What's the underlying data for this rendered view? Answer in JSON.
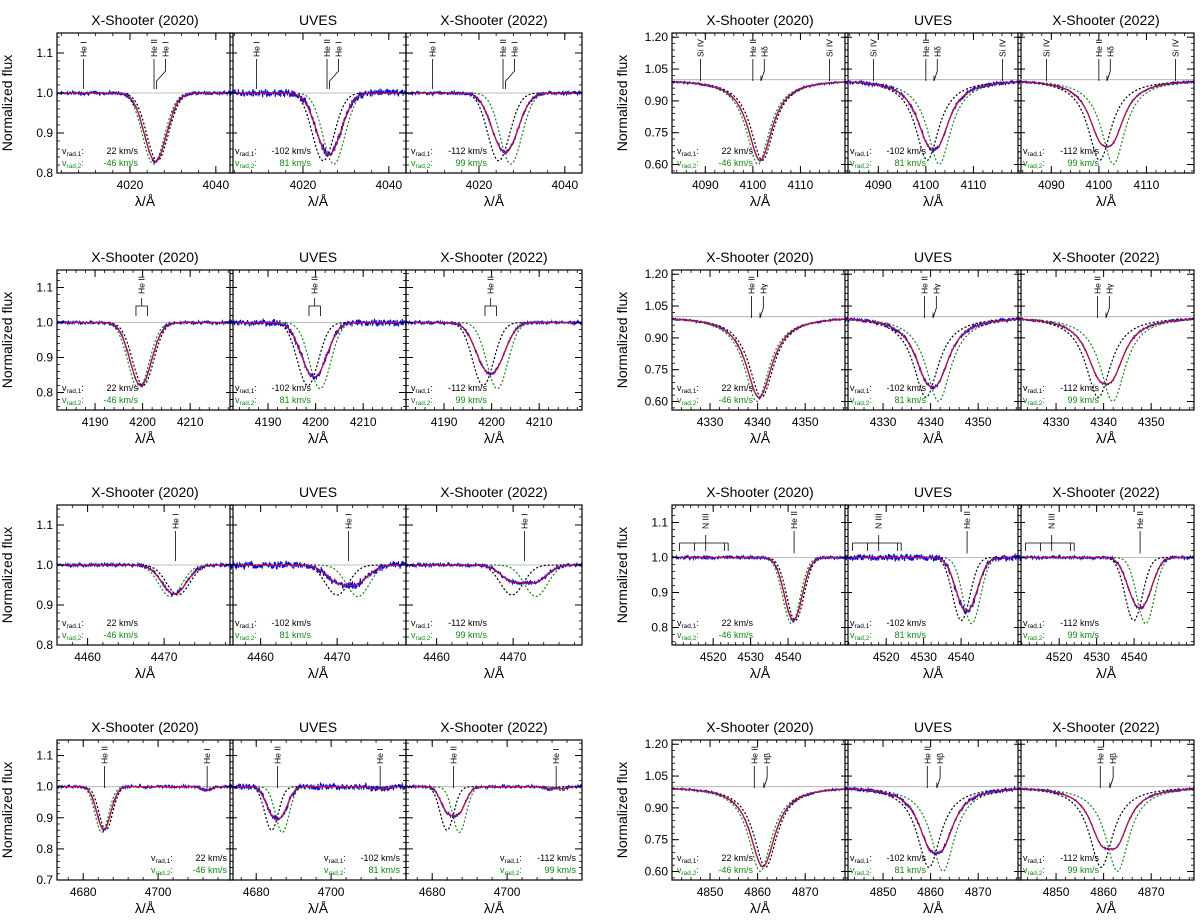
{
  "colors": {
    "observed": "#0000ee",
    "composite": "#cc0000",
    "model1": "#000000",
    "model2": "#118811",
    "continuum": "#aaaaaa",
    "composite_alt": "#8a2be2"
  },
  "epochs": [
    {
      "title": "X-Shooter (2020)",
      "v1": 22,
      "v2": -46
    },
    {
      "title": "UVES",
      "v1": -102,
      "v2": 81
    },
    {
      "title": "X-Shooter (2022)",
      "v1": -112,
      "v2": 99
    }
  ],
  "rv_text": {
    "label1_main": "v",
    "label1_sub": "rad,1",
    "label2_main": "v",
    "label2_sub": "rad,2",
    "sep": ":",
    "unit": "km/s"
  },
  "axis_labels": {
    "x": "λ/Å",
    "y": "Normalized flux"
  },
  "chart_data": [
    {
      "type": "line",
      "id": "heI4026",
      "xlim": [
        4003,
        4044
      ],
      "ylim": [
        0.8,
        1.15
      ],
      "xticks": [
        4020,
        4040
      ],
      "yticks": [
        0.8,
        0.9,
        1.0,
        1.1
      ],
      "lines": [
        {
          "center": 4026.2,
          "depth": 0.15,
          "width": 2.6,
          "profile": "gauss"
        },
        {
          "center": 4025.6,
          "depth": 0.02,
          "width": 2.0,
          "profile": "gauss"
        }
      ],
      "labels": [
        {
          "text": "He I",
          "x": 4009.2,
          "x_line": 4009.2
        },
        {
          "text": "He II",
          "x": 4025.6,
          "x_line": 4025.6
        },
        {
          "text": "He I",
          "x": 4028.3,
          "x_line": 4026.2
        }
      ],
      "rv_pos": "bl"
    },
    {
      "type": "line",
      "id": "hdelta",
      "xlim": [
        4083,
        4120
      ],
      "ylim": [
        0.56,
        1.22
      ],
      "xticks": [
        4090,
        4100,
        4110
      ],
      "yticks": [
        0.6,
        0.75,
        0.9,
        1.05,
        1.2
      ],
      "ytick_labels": [
        "0.60",
        "0.75",
        "0.90",
        "1.05",
        "1.20"
      ],
      "lines": [
        {
          "center": 4101.7,
          "depth": 0.38,
          "width": 3.0,
          "profile": "lorentz"
        }
      ],
      "labels": [
        {
          "text": "Si IV",
          "x": 4089.0,
          "x_line": 4089.0
        },
        {
          "text": "He II",
          "x": 4100.0,
          "x_line": 4100.0
        },
        {
          "text": "Hδ",
          "x": 4102.4,
          "x_line": 4101.7
        },
        {
          "text": "Si IV",
          "x": 4116.1,
          "x_line": 4116.1
        }
      ],
      "rv_pos": "bl"
    },
    {
      "type": "line",
      "id": "heII4200",
      "xlim": [
        4182,
        4219
      ],
      "ylim": [
        0.75,
        1.15
      ],
      "xticks": [
        4190,
        4200,
        4210
      ],
      "yticks": [
        0.8,
        0.9,
        1.0,
        1.1
      ],
      "lines": [
        {
          "center": 4199.8,
          "depth": 0.18,
          "width": 2.2,
          "profile": "gauss"
        }
      ],
      "labels": [
        {
          "text": "He II",
          "x": 4199.8,
          "x_line": 4199.8,
          "bracket": [
            4198.6,
            4201.0
          ]
        }
      ],
      "rv_pos": "bl"
    },
    {
      "type": "line",
      "id": "hgamma",
      "xlim": [
        4322,
        4359
      ],
      "ylim": [
        0.56,
        1.22
      ],
      "xticks": [
        4330,
        4340,
        4350
      ],
      "yticks": [
        0.6,
        0.75,
        0.9,
        1.05,
        1.2
      ],
      "ytick_labels": [
        "0.60",
        "0.75",
        "0.90",
        "1.05",
        "1.20"
      ],
      "lines": [
        {
          "center": 4340.5,
          "depth": 0.38,
          "width": 3.2,
          "profile": "lorentz"
        }
      ],
      "labels": [
        {
          "text": "He II",
          "x": 4338.7,
          "x_line": 4338.7
        },
        {
          "text": "Hγ",
          "x": 4341.2,
          "x_line": 4340.5
        }
      ],
      "rv_pos": "bl"
    },
    {
      "type": "line",
      "id": "heI4471",
      "xlim": [
        4456,
        4479
      ],
      "ylim": [
        0.8,
        1.15
      ],
      "xticks": [
        4460,
        4470
      ],
      "yticks": [
        0.8,
        0.9,
        1.0,
        1.1
      ],
      "lines": [
        {
          "center": 4471.5,
          "depth": 0.075,
          "width": 1.5,
          "profile": "gauss"
        }
      ],
      "labels": [
        {
          "text": "He I",
          "x": 4471.5,
          "x_line": 4471.5
        }
      ],
      "rv_pos": "bl"
    },
    {
      "type": "line",
      "id": "heII4542",
      "xlim": [
        4509,
        4556
      ],
      "ylim": [
        0.75,
        1.15
      ],
      "xticks": [
        4520,
        4530,
        4540
      ],
      "yticks": [
        0.8,
        0.9,
        1.0,
        1.1
      ],
      "lines": [
        {
          "center": 4541.6,
          "depth": 0.18,
          "width": 2.3,
          "profile": "gauss"
        }
      ],
      "labels": [
        {
          "text": "N III",
          "x": 4518.0,
          "x_line": 4518.0,
          "comb": [
            4511,
            4515,
            4518,
            4523,
            4524
          ]
        },
        {
          "text": "He II",
          "x": 4541.6,
          "x_line": 4541.6
        }
      ],
      "rv_pos": "bl"
    },
    {
      "type": "line",
      "id": "heII4686",
      "xlim": [
        4673,
        4720
      ],
      "ylim": [
        0.7,
        1.15
      ],
      "xticks": [
        4680,
        4700
      ],
      "yticks": [
        0.7,
        0.8,
        0.9,
        1.0,
        1.1
      ],
      "lines": [
        {
          "center": 4685.7,
          "depth": 0.14,
          "width": 1.8,
          "profile": "gauss"
        },
        {
          "center": 4713.1,
          "depth": 0.012,
          "width": 1.2,
          "profile": "gauss"
        }
      ],
      "labels": [
        {
          "text": "He II",
          "x": 4685.7,
          "x_line": 4685.7
        },
        {
          "text": "He I",
          "x": 4713.1,
          "x_line": 4713.1
        }
      ],
      "rv_pos": "br"
    },
    {
      "type": "line",
      "id": "hbeta",
      "xlim": [
        4842,
        4879
      ],
      "ylim": [
        0.56,
        1.22
      ],
      "xticks": [
        4850,
        4860,
        4870
      ],
      "yticks": [
        0.6,
        0.75,
        0.9,
        1.05,
        1.2
      ],
      "ytick_labels": [
        "0.60",
        "0.75",
        "0.90",
        "1.05",
        "1.20"
      ],
      "lines": [
        {
          "center": 4861.3,
          "depth": 0.38,
          "width": 3.0,
          "profile": "lorentz"
        }
      ],
      "labels": [
        {
          "text": "He II",
          "x": 4859.3,
          "x_line": 4859.3
        },
        {
          "text": "Hβ",
          "x": 4862.0,
          "x_line": 4861.3
        }
      ],
      "rv_pos": "bl"
    }
  ]
}
